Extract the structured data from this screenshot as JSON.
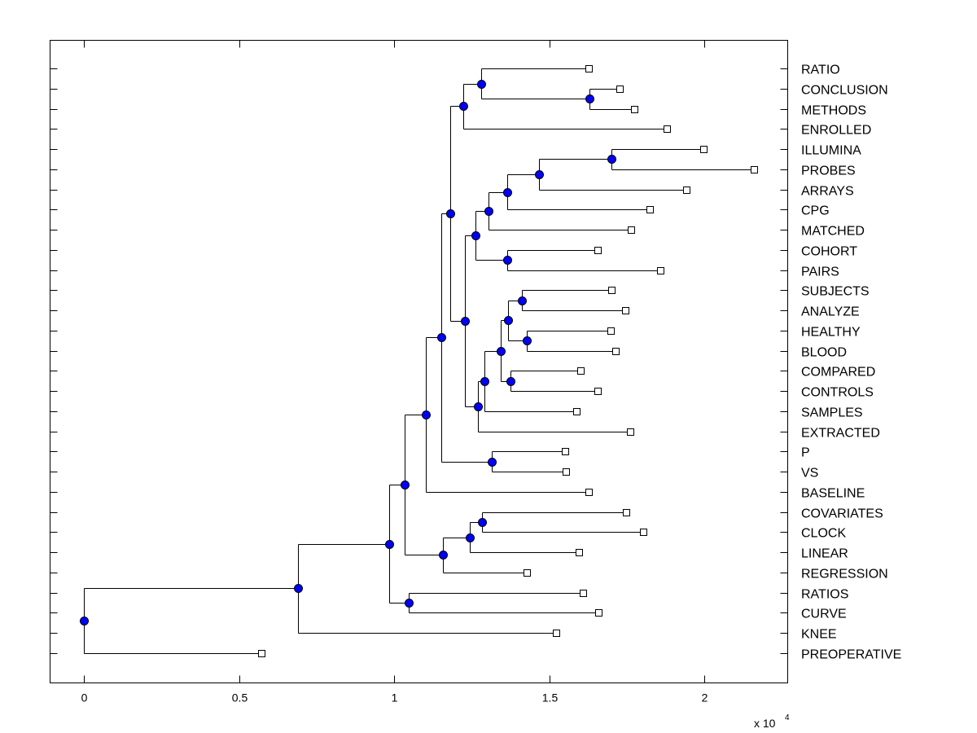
{
  "chart_data": {
    "type": "dendrogram",
    "title": "",
    "xlabel": "",
    "ylabel": "",
    "x_scale_label": "x 10",
    "x_scale_exponent": "4",
    "xlim": [
      -0.11,
      2.268
    ],
    "x_ticks": [
      0,
      0.5,
      1,
      1.5,
      2
    ],
    "x_tick_labels": [
      "0",
      "0.5",
      "1",
      "1.5",
      "2"
    ],
    "grid": false,
    "leaf_order": [
      "RATIO",
      "CONCLUSION",
      "METHODS",
      "ENROLLED",
      "ILLUMINA",
      "PROBES",
      "ARRAYS",
      "CPG",
      "MATCHED",
      "COHORT",
      "PAIRS",
      "SUBJECTS",
      "ANALYZE",
      "HEALTHY",
      "BLOOD",
      "COMPARED",
      "CONTROLS",
      "SAMPLES",
      "EXTRACTED",
      "P",
      "VS",
      "BASELINE",
      "COVARIATES",
      "CLOCK",
      "LINEAR",
      "REGRESSION",
      "RATIOS",
      "CURVE",
      "KNEE",
      "PREOPERATIVE"
    ],
    "node_color": "#0000ff",
    "tree": {
      "x": 0,
      "children": [
        {
          "x": 0.688,
          "children": [
            {
              "x": 0.984,
              "children": [
                {
                  "x": 1.034,
                  "children": [
                    {
                      "x": 1.102,
                      "children": [
                        {
                          "x": 1.15,
                          "children": [
                            {
                              "x": 1.181,
                              "children": [
                                {
                                  "x": 1.223,
                                  "children": [
                                    {
                                      "x": 1.281,
                                      "children": [
                                        {
                                          "label": "RATIO",
                                          "x": 1.625
                                        },
                                        {
                                          "x": 1.63,
                                          "children": [
                                            {
                                              "label": "CONCLUSION",
                                              "x": 1.727
                                            },
                                            {
                                              "label": "METHODS",
                                              "x": 1.772
                                            }
                                          ]
                                        }
                                      ]
                                    },
                                    {
                                      "label": "ENROLLED",
                                      "x": 1.877
                                    }
                                  ]
                                },
                                {
                                  "x": 1.226,
                                  "children": [
                                    {
                                      "x": 1.262,
                                      "children": [
                                        {
                                          "x": 1.304,
                                          "children": [
                                            {
                                              "x": 1.365,
                                              "children": [
                                                {
                                                  "x": 1.465,
                                                  "children": [
                                                    {
                                                      "x": 1.701,
                                                      "children": [
                                                        {
                                                          "label": "ILLUMINA",
                                                          "x": 1.997
                                                        },
                                                        {
                                                          "label": "PROBES",
                                                          "x": 2.16
                                                        }
                                                      ]
                                                    },
                                                    {
                                                      "label": "ARRAYS",
                                                      "x": 1.942
                                                    }
                                                  ]
                                                },
                                                {
                                                  "label": "CPG",
                                                  "x": 1.824
                                                }
                                              ]
                                            },
                                            {
                                              "label": "MATCHED",
                                              "x": 1.764
                                            }
                                          ]
                                        },
                                        {
                                          "x": 1.365,
                                          "children": [
                                            {
                                              "label": "COHORT",
                                              "x": 1.654
                                            },
                                            {
                                              "label": "PAIRS",
                                              "x": 1.856
                                            }
                                          ]
                                        }
                                      ]
                                    },
                                    {
                                      "x": 1.27,
                                      "children": [
                                        {
                                          "x": 1.291,
                                          "children": [
                                            {
                                              "x": 1.344,
                                              "children": [
                                                {
                                                  "x": 1.367,
                                                  "children": [
                                                    {
                                                      "x": 1.412,
                                                      "children": [
                                                        {
                                                          "label": "SUBJECTS",
                                                          "x": 1.701
                                                        },
                                                        {
                                                          "label": "ANALYZE",
                                                          "x": 1.745
                                                        }
                                                      ]
                                                    },
                                                    {
                                                      "x": 1.428,
                                                      "children": [
                                                        {
                                                          "label": "HEALTHY",
                                                          "x": 1.698
                                                        },
                                                        {
                                                          "label": "BLOOD",
                                                          "x": 1.714
                                                        }
                                                      ]
                                                    }
                                                  ]
                                                },
                                                {
                                                  "x": 1.375,
                                                  "children": [
                                                    {
                                                      "label": "COMPARED",
                                                      "x": 1.601
                                                    },
                                                    {
                                                      "label": "CONTROLS",
                                                      "x": 1.654
                                                    }
                                                  ]
                                                }
                                              ]
                                            },
                                            {
                                              "label": "SAMPLES",
                                              "x": 1.588
                                            }
                                          ]
                                        },
                                        {
                                          "label": "EXTRACTED",
                                          "x": 1.759
                                        }
                                      ]
                                    }
                                  ]
                                }
                              ]
                            },
                            {
                              "x": 1.315,
                              "children": [
                                {
                                  "label": "P",
                                  "x": 1.549
                                },
                                {
                                  "label": "VS",
                                  "x": 1.554
                                }
                              ]
                            }
                          ]
                        },
                        {
                          "label": "BASELINE",
                          "x": 1.627
                        }
                      ]
                    },
                    {
                      "x": 1.157,
                      "children": [
                        {
                          "x": 1.244,
                          "children": [
                            {
                              "x": 1.283,
                              "children": [
                                {
                                  "label": "COVARIATES",
                                  "x": 1.748
                                },
                                {
                                  "label": "CLOCK",
                                  "x": 1.803
                                }
                              ]
                            },
                            {
                              "label": "LINEAR",
                              "x": 1.596
                            }
                          ]
                        },
                        {
                          "label": "REGRESSION",
                          "x": 1.428
                        }
                      ]
                    }
                  ]
                },
                {
                  "x": 1.045,
                  "children": [
                    {
                      "label": "RATIOS",
                      "x": 1.609
                    },
                    {
                      "label": "CURVE",
                      "x": 1.659
                    }
                  ]
                }
              ]
            },
            {
              "label": "KNEE",
              "x": 1.522
            }
          ]
        },
        {
          "label": "PREOPERATIVE",
          "x": 0.572
        }
      ]
    }
  }
}
